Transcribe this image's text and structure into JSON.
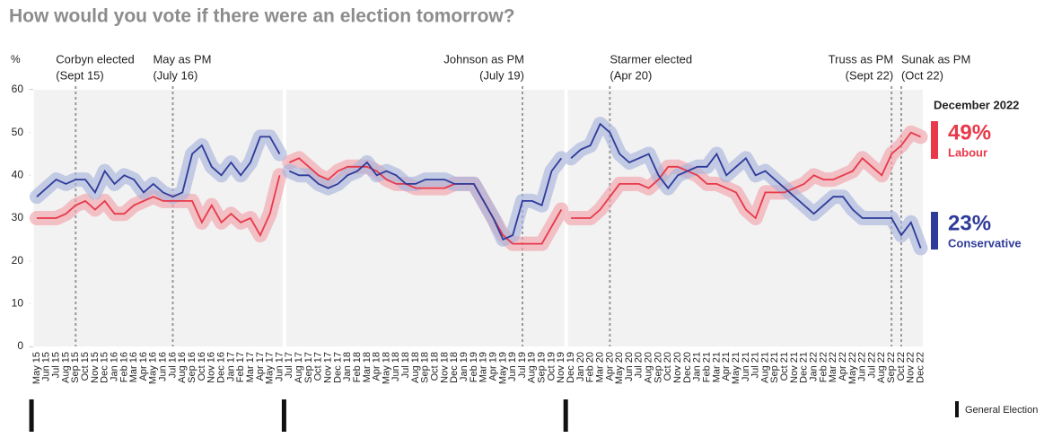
{
  "chart_data": {
    "type": "line",
    "title": "How would you vote if there were an election tomorrow?",
    "y_label": "%",
    "ylim": [
      0,
      60
    ],
    "yticks": [
      0,
      10,
      20,
      30,
      40,
      50,
      60
    ],
    "categories": [
      "May 15",
      "Jun 15",
      "Jul 15",
      "Aug 15",
      "Sep 15",
      "Oct 15",
      "Nov 15",
      "Dec 15",
      "Jan 16",
      "Feb 16",
      "Mar 16",
      "Apr 16",
      "May 16",
      "Jun 16",
      "Jul 16",
      "Aug 16",
      "Sep 16",
      "Oct 16",
      "Nov 16",
      "Dec 16",
      "Jan 17",
      "Feb 17",
      "Mar 17",
      "Apr 17",
      "May 17",
      "Jun 17",
      "Jul 17",
      "Aug 17",
      "Sep 17",
      "Oct 17",
      "Nov 17",
      "Dec 17",
      "Jan 18",
      "Feb 18",
      "Mar 18",
      "Apr 18",
      "May 18",
      "Jun 18",
      "Jul 18",
      "Aug 18",
      "Sep 18",
      "Oct 18",
      "Nov 18",
      "Dec 18",
      "Jan 19",
      "Feb 19",
      "Mar 19",
      "Apr 19",
      "May 19",
      "Jun 19",
      "Jul 19",
      "Aug 19",
      "Sep 19",
      "Oct 19",
      "Nov 19",
      "Dec 19",
      "Jan 20",
      "Feb 20",
      "Mar 20",
      "Apr 20",
      "May 20",
      "Jun 20",
      "Jul 20",
      "Aug 20",
      "Sep 20",
      "Oct 20",
      "Nov 20",
      "Dec 20",
      "Jan 21",
      "Feb 21",
      "Mar 21",
      "Apr 21",
      "May 21",
      "Jun 21",
      "Jul 21",
      "Aug 21",
      "Sep 21",
      "Oct 21",
      "Nov 21",
      "Dec 21",
      "Jan 22",
      "Feb 22",
      "Mar 22",
      "Apr 22",
      "May 22",
      "Jun 22",
      "Jul 22",
      "Aug 22",
      "Sep 22",
      "Oct 22",
      "Nov 22",
      "Dec 22"
    ],
    "series": [
      {
        "name": "Labour",
        "color": "#e8394a",
        "band_color": "#f0a3ab",
        "values": [
          30,
          30,
          30,
          31,
          33,
          34,
          32,
          34,
          31,
          31,
          33,
          34,
          35,
          34,
          34,
          34,
          34,
          29,
          33,
          29,
          31,
          29,
          30,
          26,
          31,
          40,
          43,
          44,
          42,
          40,
          39,
          41,
          42,
          42,
          42,
          41,
          39,
          38,
          38,
          37,
          37,
          37,
          37,
          38,
          38,
          38,
          34,
          30,
          26,
          24,
          24,
          24,
          24,
          28,
          32,
          30,
          30,
          30,
          32,
          35,
          38,
          38,
          38,
          37,
          39,
          42,
          42,
          41,
          40,
          38,
          38,
          37,
          36,
          32,
          30,
          36,
          36,
          36,
          37,
          38,
          40,
          39,
          39,
          40,
          41,
          44,
          42,
          40,
          45,
          47,
          50,
          49
        ]
      },
      {
        "name": "Conservative",
        "color": "#2e3b99",
        "band_color": "#a9b3dc",
        "values": [
          35,
          37,
          39,
          38,
          39,
          39,
          36,
          41,
          38,
          40,
          39,
          36,
          38,
          36,
          35,
          36,
          45,
          47,
          42,
          40,
          43,
          40,
          43,
          49,
          49,
          45,
          41,
          40,
          40,
          38,
          37,
          38,
          40,
          41,
          43,
          40,
          41,
          40,
          38,
          38,
          39,
          39,
          39,
          38,
          38,
          38,
          34,
          30,
          25,
          26,
          34,
          34,
          33,
          41,
          44,
          44,
          46,
          47,
          52,
          50,
          45,
          43,
          44,
          45,
          40,
          37,
          40,
          41,
          42,
          42,
          45,
          40,
          42,
          44,
          40,
          41,
          39,
          37,
          35,
          33,
          31,
          33,
          35,
          35,
          32,
          30,
          30,
          30,
          30,
          26,
          29,
          23
        ]
      }
    ],
    "general_elections": [
      "May 15",
      "Jul 17",
      "Dec 19"
    ],
    "general_election_label": "General Election",
    "events": [
      {
        "label": "Corbyn elected",
        "date": "(Sept 15)",
        "category": "Sep 15",
        "align": "start"
      },
      {
        "label": "May as PM",
        "date": "(July 16)",
        "category": "Jul 16",
        "align": "start"
      },
      {
        "label": "Johnson as PM",
        "date": "(July 19)",
        "category": "Jul 19",
        "align": "end"
      },
      {
        "label": "Starmer elected",
        "date": "(Apr 20)",
        "category": "Apr 20",
        "align": "start"
      },
      {
        "label": "Truss as PM",
        "date": "(Sept 22)",
        "category": "Sep 22",
        "align": "end"
      },
      {
        "label": "Sunak as PM",
        "date": "(Oct 22)",
        "category": "Oct 22",
        "align": "start"
      }
    ],
    "latest": {
      "title": "December 2022",
      "labels": [
        "49%",
        "23%"
      ]
    }
  }
}
